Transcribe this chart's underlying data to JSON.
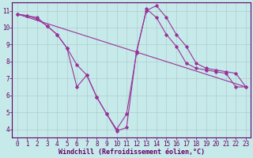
{
  "xlabel": "Windchill (Refroidissement éolien,°C)",
  "xlim": [
    -0.5,
    23.5
  ],
  "ylim": [
    3.5,
    11.5
  ],
  "xticks": [
    0,
    1,
    2,
    3,
    4,
    5,
    6,
    7,
    8,
    9,
    10,
    11,
    12,
    13,
    14,
    15,
    16,
    17,
    18,
    19,
    20,
    21,
    22,
    23
  ],
  "yticks": [
    4,
    5,
    6,
    7,
    8,
    9,
    10,
    11
  ],
  "bg_color": "#c6eaea",
  "grid_color": "#b0cccc",
  "line_color": "#993399",
  "curve1_y": [
    10.8,
    10.7,
    10.6,
    10.1,
    9.6,
    8.8,
    6.5,
    7.2,
    5.9,
    4.9,
    3.9,
    4.1,
    8.6,
    11.0,
    11.3,
    10.6,
    9.6,
    8.9,
    7.9,
    7.6,
    7.5,
    7.4,
    7.3,
    6.5
  ],
  "curve2_y": [
    10.8,
    10.7,
    10.5,
    10.1,
    9.6,
    8.8,
    7.8,
    7.2,
    5.9,
    4.9,
    4.0,
    4.9,
    8.5,
    11.1,
    10.6,
    9.6,
    8.9,
    7.9,
    7.6,
    7.5,
    7.4,
    7.3,
    6.5,
    6.5
  ],
  "line3_x": [
    0,
    23
  ],
  "line3_y": [
    10.8,
    6.5
  ],
  "tick_fontsize": 5.5,
  "xlabel_fontsize": 6.0
}
